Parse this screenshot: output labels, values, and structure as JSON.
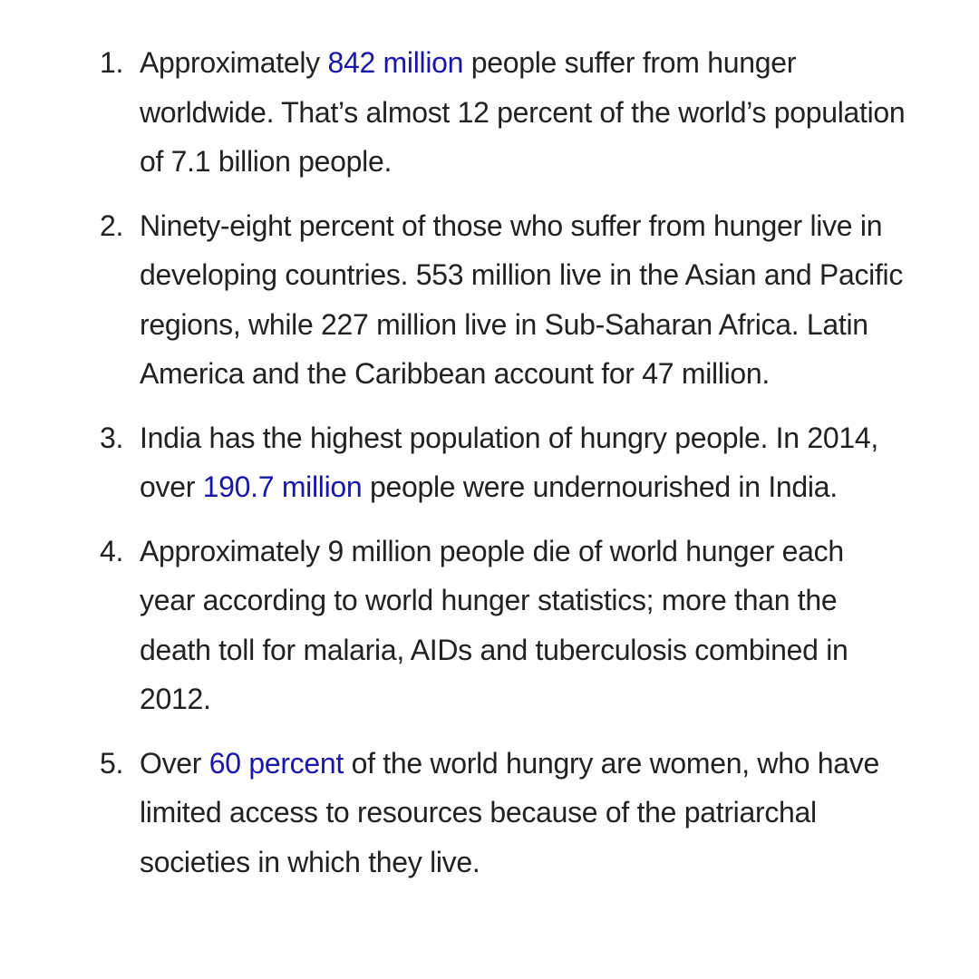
{
  "facts": [
    {
      "number": "1.",
      "segments": [
        {
          "text": " Approximately "
        },
        {
          "text": "842 million",
          "link": true
        },
        {
          "text": " people suffer from hunger worldwide. That’s almost 12 percent of the world’s population of 7.1 billion people."
        }
      ]
    },
    {
      "number": "2.",
      "segments": [
        {
          "text": "Ninety-eight percent of those who suffer from hunger live in developing countries. 553 million live in the Asian and Pacific regions, while 227 million live in Sub-Saharan Africa. Latin America and the Caribbean account for 47 million."
        }
      ]
    },
    {
      "number": "3.",
      "segments": [
        {
          "text": "India has the highest population of hungry people. In 2014, over "
        },
        {
          "text": "190.7 million",
          "link": true
        },
        {
          "text": " people were undernourished in India."
        }
      ]
    },
    {
      "number": "4.",
      "segments": [
        {
          "text": "Approximately 9 million people die of world hunger each year according to world hunger statistics; more than the death toll for malaria, AIDs and tuberculosis combined in 2012."
        }
      ]
    },
    {
      "number": "5.",
      "segments": [
        {
          "text": "Over "
        },
        {
          "text": "60 percent",
          "link": true
        },
        {
          "text": " of the world hungry are women, who have limited access to resources because of the patriarchal societies in which they live."
        }
      ]
    }
  ],
  "colors": {
    "text": "#222222",
    "link": "#1a17a8",
    "background": "#ffffff"
  }
}
